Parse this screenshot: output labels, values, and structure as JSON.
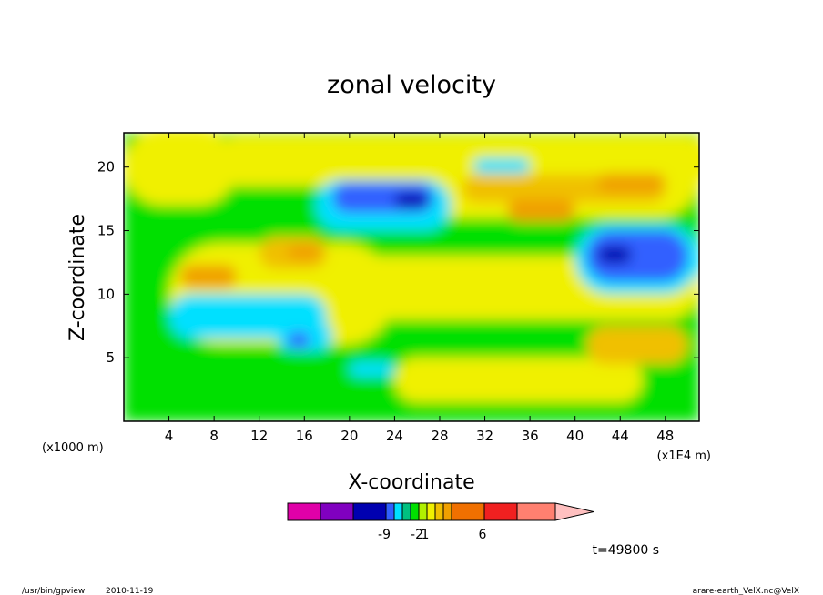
{
  "chart_data": {
    "type": "heatmap",
    "title": "zonal velocity",
    "xlabel": "X-coordinate",
    "ylabel": "Z-coordinate",
    "x_unit_note": "(x1E4 m)",
    "y_unit_note": "(x1000 m)",
    "x_ticks": [
      4,
      8,
      12,
      16,
      20,
      24,
      28,
      32,
      36,
      40,
      44,
      48
    ],
    "y_ticks": [
      5,
      10,
      15,
      20
    ],
    "xlim": [
      0,
      51
    ],
    "ylim": [
      0,
      22.7
    ],
    "colorbar": {
      "colors": [
        "#e000a8",
        "#8000c0",
        "#0000b0",
        "#3060ff",
        "#00e0ff",
        "#00c080",
        "#00e000",
        "#b0f000",
        "#f0f000",
        "#f0c000",
        "#f0a000",
        "#f07000",
        "#f02020",
        "#ff8070",
        "#ffc0c0"
      ],
      "labels": [
        {
          "text": "-9",
          "at_index": 2
        },
        {
          "text": "-2",
          "at_index": 6
        },
        {
          "text": "1",
          "at_index": 7
        },
        {
          "text": "6",
          "at_index": 11
        }
      ]
    },
    "features": [
      {
        "x": 0,
        "z": 0,
        "w": 51,
        "h": 22.7,
        "color": "#00e000"
      },
      {
        "x": 24,
        "z": 1.5,
        "w": 22,
        "h": 3.5,
        "color": "#f0f000"
      },
      {
        "x": 4,
        "z": 6,
        "w": 20,
        "h": 8,
        "color": "#f0f000"
      },
      {
        "x": 18,
        "z": 8,
        "w": 33,
        "h": 5,
        "color": "#f0f000"
      },
      {
        "x": 0,
        "z": 17,
        "w": 10,
        "h": 6,
        "color": "#f0f000"
      },
      {
        "x": 26,
        "z": 16,
        "w": 25,
        "h": 6.5,
        "color": "#f0f000"
      },
      {
        "x": 8,
        "z": 18.5,
        "w": 44,
        "h": 4,
        "color": "#f0f000"
      },
      {
        "x": 30,
        "z": 17.2,
        "w": 18,
        "h": 2.2,
        "color": "#f0c000"
      },
      {
        "x": 34,
        "z": 15.7,
        "w": 6,
        "h": 1.8,
        "color": "#f0a000"
      },
      {
        "x": 42,
        "z": 18,
        "w": 6,
        "h": 1.5,
        "color": "#f0a000"
      },
      {
        "x": 12,
        "z": 12,
        "w": 6,
        "h": 2.5,
        "color": "#f0c000"
      },
      {
        "x": 14.5,
        "z": 12.7,
        "w": 3,
        "h": 1.2,
        "color": "#f0a000"
      },
      {
        "x": 41,
        "z": 4.5,
        "w": 9,
        "h": 3,
        "color": "#f0c000"
      },
      {
        "x": 5,
        "z": 10.5,
        "w": 5,
        "h": 1.8,
        "color": "#f0a000"
      },
      {
        "x": 17,
        "z": 15,
        "w": 12,
        "h": 4,
        "color": "#00e0ff"
      },
      {
        "x": 18.5,
        "z": 16.4,
        "w": 9,
        "h": 2.4,
        "color": "#3060ff"
      },
      {
        "x": 24,
        "z": 16.8,
        "w": 3,
        "h": 1.2,
        "color": "#0000b0"
      },
      {
        "x": 40,
        "z": 10,
        "w": 11,
        "h": 5.5,
        "color": "#00e0ff"
      },
      {
        "x": 41,
        "z": 11,
        "w": 9,
        "h": 4,
        "color": "#3060ff"
      },
      {
        "x": 42,
        "z": 12.4,
        "w": 3,
        "h": 1.4,
        "color": "#0000b0"
      },
      {
        "x": 4,
        "z": 6.5,
        "w": 14,
        "h": 3.5,
        "color": "#00e0ff"
      },
      {
        "x": 13.5,
        "z": 5.5,
        "w": 5,
        "h": 2.5,
        "color": "#00e0ff"
      },
      {
        "x": 14.5,
        "z": 5.8,
        "w": 2,
        "h": 1.2,
        "color": "#3060ff"
      },
      {
        "x": 20,
        "z": 3.5,
        "w": 4,
        "h": 1.2,
        "color": "#00e0ff"
      },
      {
        "x": 31,
        "z": 19.5,
        "w": 5,
        "h": 1.2,
        "color": "#00e0ff"
      }
    ]
  },
  "time_label": "t=49800 s",
  "footer": {
    "left_path": "/usr/bin/gpview",
    "left_date": "2010-11-19",
    "right_source": "arare-earth_VelX.nc@VelX"
  }
}
